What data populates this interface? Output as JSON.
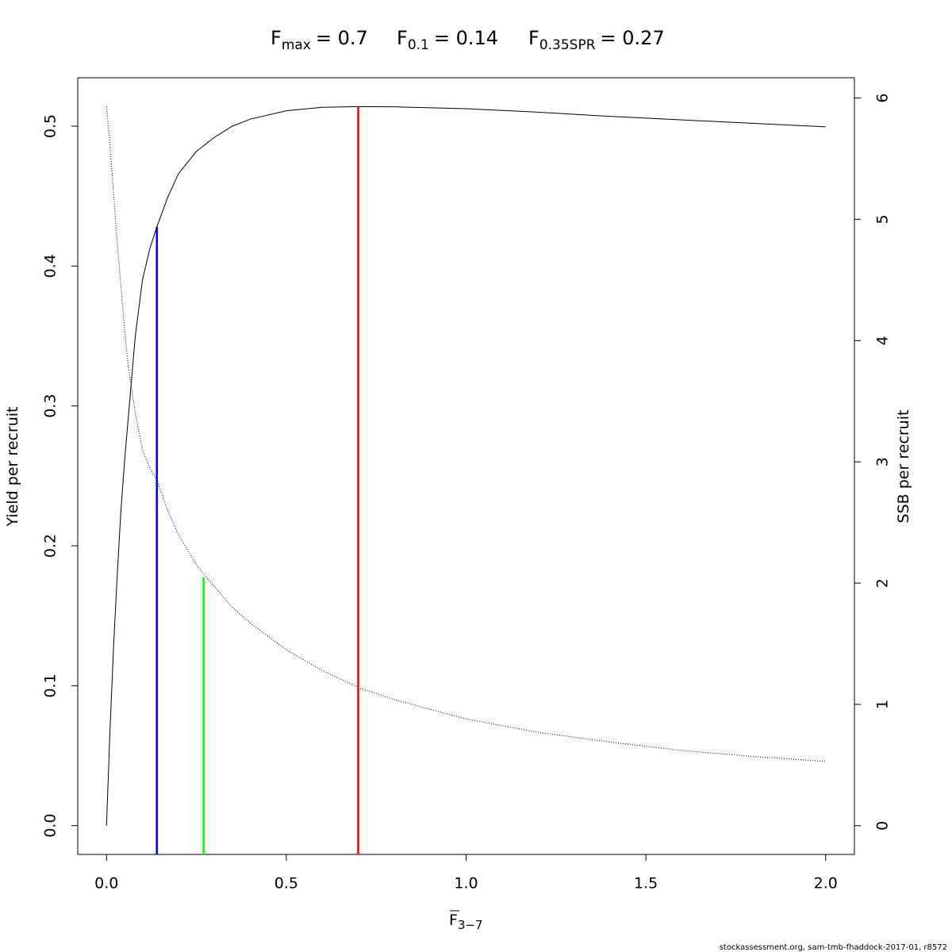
{
  "chart_data": {
    "type": "line",
    "title_parts": [
      {
        "symbol": "F",
        "subscript": "max",
        "label": "= 0.7"
      },
      {
        "symbol": "F",
        "subscript": "0.1",
        "label": "= 0.14"
      },
      {
        "symbol": "F",
        "subscript": "0.35SPR",
        "label": "= 0.27"
      }
    ],
    "xlabel": {
      "symbol": "F",
      "subscript": "3−7"
    },
    "ylabel": "Yield per recruit",
    "y2label": "SSB per recruit",
    "footer": "stockassessment.org, sam-tmb-fhaddock-2017-01, r8572",
    "x": [
      0,
      0.01,
      0.02,
      0.03,
      0.04,
      0.05,
      0.06,
      0.08,
      0.1,
      0.12,
      0.14,
      0.17,
      0.2,
      0.25,
      0.3,
      0.35,
      0.4,
      0.5,
      0.6,
      0.7,
      0.8,
      1.0,
      1.2,
      1.4,
      1.6,
      1.8,
      2.0
    ],
    "series": [
      {
        "name": "Yield per recruit",
        "color": "#000000",
        "dash": false,
        "values": [
          0,
          0.07,
          0.13,
          0.18,
          0.225,
          0.26,
          0.29,
          0.35,
          0.39,
          0.412,
          0.428,
          0.449,
          0.466,
          0.482,
          0.492,
          0.5,
          0.505,
          0.511,
          0.5135,
          0.514,
          0.5138,
          0.5125,
          0.51,
          0.507,
          0.5045,
          0.502,
          0.4995
        ]
      },
      {
        "name": "SSB per recruit",
        "color": "#000000",
        "dash": true,
        "axis": "y2",
        "values": [
          5.93,
          5.6,
          5.2,
          4.8,
          4.45,
          4.1,
          3.8,
          3.4,
          3.1,
          2.95,
          2.85,
          2.6,
          2.4,
          2.15,
          1.97,
          1.8,
          1.67,
          1.45,
          1.28,
          1.14,
          1.04,
          0.88,
          0.77,
          0.69,
          0.62,
          0.57,
          0.53
        ]
      }
    ],
    "reference_lines": [
      {
        "value": 0.14,
        "y_end": 0.428,
        "color": "#0000ff"
      },
      {
        "value": 0.27,
        "y_end": 2.05,
        "axis": "y2",
        "color": "#00ff00"
      },
      {
        "value": 0.7,
        "y_end": 0.514,
        "color": "#ff0000"
      }
    ],
    "xlim": [
      -0.08,
      2.08
    ],
    "ylim": [
      -0.0206,
      0.5346
    ],
    "y2lim": [
      -0.237,
      6.167
    ],
    "xticks": [
      {
        "value": 0,
        "label": "0.0"
      },
      {
        "value": 0.5,
        "label": "0.5"
      },
      {
        "value": 1,
        "label": "1.0"
      },
      {
        "value": 1.5,
        "label": "1.5"
      },
      {
        "value": 2,
        "label": "2.0"
      }
    ],
    "yticks": [
      {
        "value": 0,
        "label": "0.0"
      },
      {
        "value": 0.1,
        "label": "0.1"
      },
      {
        "value": 0.2,
        "label": "0.2"
      },
      {
        "value": 0.3,
        "label": "0.3"
      },
      {
        "value": 0.4,
        "label": "0.4"
      },
      {
        "value": 0.5,
        "label": "0.5"
      }
    ],
    "y2ticks": [
      0,
      1,
      2,
      3,
      4,
      5,
      6
    ]
  }
}
